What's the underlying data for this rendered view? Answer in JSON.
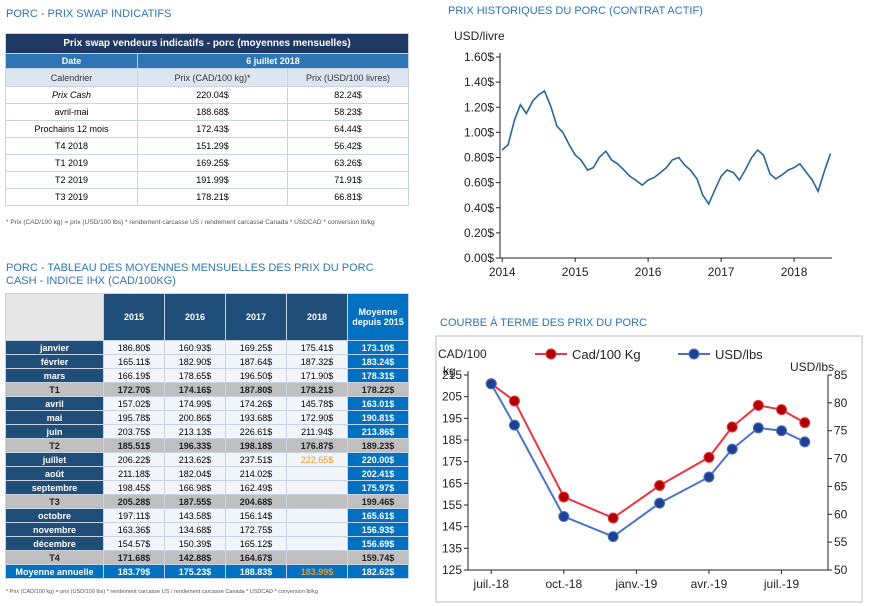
{
  "swap": {
    "title": "PORC - PRIX SWAP INDICATIFS",
    "caption": "Prix swap vendeurs indicatifs - porc (moyennes mensuelles)",
    "date_label": "Date",
    "date": "6 juillet 2018",
    "columns": [
      "Calendrier",
      "Prix (CAD/100 kg)*",
      "Prix (USD/100 livres)"
    ],
    "rows": [
      [
        "Prix Cash",
        "220.04$",
        "82.24$"
      ],
      [
        "avril-mai",
        "188.68$",
        "58.23$"
      ],
      [
        "Prochains 12 mois",
        "172.43$",
        "64.44$"
      ],
      [
        "T4 2018",
        "151.29$",
        "56.42$"
      ],
      [
        "T1 2019",
        "169.25$",
        "63.26$"
      ],
      [
        "T2 2019",
        "191.99$",
        "71.91$"
      ],
      [
        "T3 2019",
        "178.21$",
        "66.81$"
      ]
    ],
    "footnote": "* Prix (CAD/100 kg) = prix (USD/100 lbs) * rendement carcasse US / rendement carcasse Canada * USDCAD * conversion lb/kg"
  },
  "monthly": {
    "title": "PORC - TABLEAU DES MOYENNES MENSUELLES DES PRIX DU PORC CASH - INDICE IHX (CAD/100KG)",
    "columns": [
      "2015",
      "2016",
      "2017",
      "2018",
      "Moyenne depuis 2015"
    ],
    "quarters": [
      {
        "months": [
          {
            "label": "janvier",
            "cells": [
              "186.80$",
              "160.93$",
              "169.25$",
              "175.41$",
              "173.10$"
            ]
          },
          {
            "label": "février",
            "cells": [
              "165.11$",
              "182.90$",
              "187.64$",
              "187.32$",
              "183.24$"
            ]
          },
          {
            "label": "mars",
            "cells": [
              "166.19$",
              "178.65$",
              "196.50$",
              "171.90$",
              "178.31$"
            ]
          }
        ],
        "total": {
          "label": "T1",
          "cells": [
            "172.70$",
            "174.16$",
            "187.80$",
            "178.21$",
            "178.22$"
          ]
        }
      },
      {
        "months": [
          {
            "label": "avril",
            "cells": [
              "157.02$",
              "174.99$",
              "174.26$",
              "145.78$",
              "163.01$"
            ]
          },
          {
            "label": "mai",
            "cells": [
              "195.78$",
              "200.86$",
              "193.68$",
              "172.90$",
              "190.81$"
            ]
          },
          {
            "label": "juin",
            "cells": [
              "203.75$",
              "213.13$",
              "226.61$",
              "211.94$",
              "213.86$"
            ]
          }
        ],
        "total": {
          "label": "T2",
          "cells": [
            "185.51$",
            "196.33$",
            "198.18$",
            "176.87$",
            "189.23$"
          ]
        }
      },
      {
        "months": [
          {
            "label": "juillet",
            "cells": [
              "206.22$",
              "213.62$",
              "237.51$",
              "222.65$",
              "220.00$"
            ]
          },
          {
            "label": "août",
            "cells": [
              "211.18$",
              "182.04$",
              "214.02$",
              null,
              "202.41$"
            ]
          },
          {
            "label": "septembre",
            "cells": [
              "198.45$",
              "166.98$",
              "162.49$",
              null,
              "175.97$"
            ]
          }
        ],
        "total": {
          "label": "T3",
          "cells": [
            "205.28$",
            "187.55$",
            "204.68$",
            null,
            "199.46$"
          ]
        }
      },
      {
        "months": [
          {
            "label": "octobre",
            "cells": [
              "197.11$",
              "143.58$",
              "156.14$",
              null,
              "165.61$"
            ]
          },
          {
            "label": "novembre",
            "cells": [
              "163.36$",
              "134.68$",
              "172.75$",
              null,
              "156.93$"
            ]
          },
          {
            "label": "décembre",
            "cells": [
              "154.57$",
              "150.39$",
              "165.12$",
              null,
              "156.69$"
            ]
          }
        ],
        "total": {
          "label": "T4",
          "cells": [
            "171.68$",
            "142.88$",
            "164.67$",
            null,
            "159.74$"
          ]
        }
      }
    ],
    "annual": {
      "label": "Moyenne annuelle",
      "cells": [
        "183.79$",
        "175.23$",
        "188.83$",
        "183.99$",
        "182.62$"
      ]
    },
    "highlight": {
      "color": "#f7941d",
      "cells": [
        "monthly.quarters.2.months.0.cells.3",
        "monthly.annual.cells.3"
      ]
    },
    "footnote": "* Prix (CAD/100 kg) = prix (USD/100 lbs) * rendement carcasse US / rendement carcasse Canada * USDCAD * conversion lb/kg"
  },
  "chart_data": [
    {
      "type": "line",
      "title": "PRIX HISTORIQUES DU PORC (CONTRAT ACTIF)",
      "ylabel": "USD/livre",
      "color": "#2a6496",
      "x": [
        2014,
        2014.08,
        2014.17,
        2014.25,
        2014.33,
        2014.42,
        2014.5,
        2014.58,
        2014.67,
        2014.75,
        2014.83,
        2014.92,
        2015,
        2015.08,
        2015.17,
        2015.25,
        2015.33,
        2015.42,
        2015.5,
        2015.58,
        2015.67,
        2015.75,
        2015.83,
        2015.92,
        2016,
        2016.08,
        2016.17,
        2016.25,
        2016.33,
        2016.42,
        2016.5,
        2016.58,
        2016.67,
        2016.75,
        2016.83,
        2016.92,
        2017,
        2017.08,
        2017.17,
        2017.25,
        2017.33,
        2017.42,
        2017.5,
        2017.58,
        2017.67,
        2017.75,
        2017.83,
        2017.92,
        2018,
        2018.08,
        2018.17,
        2018.25,
        2018.33,
        2018.42,
        2018.5
      ],
      "values": [
        0.86,
        0.9,
        1.1,
        1.22,
        1.15,
        1.25,
        1.3,
        1.33,
        1.2,
        1.05,
        1.0,
        0.9,
        0.82,
        0.78,
        0.7,
        0.72,
        0.8,
        0.85,
        0.78,
        0.75,
        0.7,
        0.65,
        0.62,
        0.58,
        0.62,
        0.64,
        0.68,
        0.72,
        0.78,
        0.8,
        0.74,
        0.7,
        0.63,
        0.5,
        0.43,
        0.55,
        0.65,
        0.7,
        0.68,
        0.62,
        0.7,
        0.8,
        0.86,
        0.82,
        0.67,
        0.63,
        0.66,
        0.7,
        0.72,
        0.75,
        0.68,
        0.62,
        0.53,
        0.7,
        0.83
      ],
      "xlim": [
        2013.97,
        2018.52
      ],
      "xticks": [
        2014,
        2015,
        2016,
        2017,
        2018
      ],
      "ylim": [
        0,
        1.6
      ],
      "yticks": [
        {
          "value": 0,
          "label": "0.00$"
        },
        {
          "value": 0.2,
          "label": "0.20$"
        },
        {
          "value": 0.4,
          "label": "0.40$"
        },
        {
          "value": 0.6,
          "label": "0.60$"
        },
        {
          "value": 0.8,
          "label": "0.80$"
        },
        {
          "value": 1,
          "label": "1.00$"
        },
        {
          "value": 1.2,
          "label": "1.20$"
        },
        {
          "value": 1.4,
          "label": "1.40$"
        },
        {
          "value": 1.6,
          "label": "1.60$"
        }
      ]
    },
    {
      "type": "line",
      "title": "COURBE À TERME DES PRIX DU PORC",
      "ylabel": [
        "CAD/100",
        "kg"
      ],
      "y2label": "USD/lbs",
      "legend": "top",
      "x": [
        2018.5,
        2018.58,
        2018.75,
        2018.92,
        2019.08,
        2019.25,
        2019.33,
        2019.42,
        2019.5,
        2019.58
      ],
      "xlim": [
        2018.42,
        2019.66
      ],
      "xticks": [
        {
          "value": 2018.5,
          "label": "juil.-18"
        },
        {
          "value": 2018.75,
          "label": "oct.-18"
        },
        {
          "value": 2019,
          "label": "janv.-19"
        },
        {
          "value": 2019.25,
          "label": "avr.-19"
        },
        {
          "value": 2019.5,
          "label": "juil.-19"
        }
      ],
      "ylim": [
        125,
        215
      ],
      "yticks": [
        125,
        135,
        145,
        155,
        165,
        175,
        185,
        195,
        205,
        215
      ],
      "y2lim": [
        50,
        85
      ],
      "y2ticks": [
        50,
        55,
        60,
        65,
        70,
        75,
        80,
        85
      ],
      "series": [
        {
          "name": "Cad/100 Kg",
          "color": "#e8383d",
          "marker_color": "#b00000",
          "values": [
            211,
            203,
            158.7,
            149,
            164,
            177,
            191,
            201,
            199,
            193
          ]
        },
        {
          "name": "USD/lbs",
          "axis": "y2",
          "color": "#4a73c8",
          "marker_color": "#1f3f8f",
          "values": [
            83.4,
            76,
            59.6,
            56,
            62,
            66.7,
            71.7,
            75.5,
            75,
            73
          ]
        }
      ]
    }
  ]
}
